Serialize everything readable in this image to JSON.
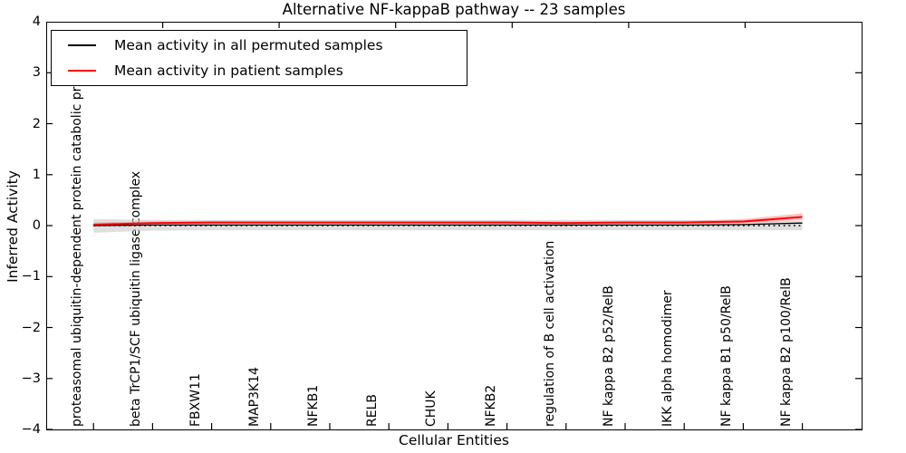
{
  "chart_data": {
    "type": "line",
    "title": "Alternative NF-kappaB pathway -- 23 samples",
    "xlabel": "Cellular Entities",
    "ylabel": "Inferred Activity",
    "ylim": [
      -4,
      4
    ],
    "yticks": [
      4,
      3,
      2,
      1,
      0,
      -1,
      -2,
      -3,
      -4
    ],
    "ytick_labels": [
      "4",
      "3",
      "2",
      "1",
      "0",
      "−1",
      "−2",
      "−3",
      "−4"
    ],
    "grid": false,
    "legend_position": "upper left",
    "frame_color": "#000000",
    "categories": [
      "proteasomal ubiquitin-dependent protein catabolic pr",
      "beta TrCP1/SCF ubiquitin ligase complex",
      "FBXW11",
      "MAP3K14",
      "NFKB1",
      "RELB",
      "CHUK",
      "NFKB2",
      "regulation of B cell activation",
      "NF kappa B2 p52/RelB",
      "IKK alpha homodimer",
      "NF kappa B1 p50/RelB",
      "NF kappa B2 p100/RelB"
    ],
    "series": [
      {
        "name": "Mean activity in all permuted samples",
        "color": "#000000",
        "line_width": 1.3,
        "values": [
          0.0,
          0.01,
          0.01,
          0.01,
          0.01,
          0.01,
          0.01,
          0.01,
          0.01,
          0.01,
          0.01,
          0.02,
          0.05
        ]
      },
      {
        "name": "Mean activity in patient samples",
        "color": "#ff0000",
        "line_width": 1.9,
        "values": [
          0.02,
          0.05,
          0.06,
          0.06,
          0.06,
          0.06,
          0.06,
          0.06,
          0.05,
          0.06,
          0.06,
          0.08,
          0.17
        ]
      }
    ],
    "bands": [
      {
        "name": "permuted-range",
        "color": "#c9c9c9",
        "opacity": 0.6,
        "upper": [
          0.13,
          0.11,
          0.11,
          0.11,
          0.11,
          0.11,
          0.11,
          0.11,
          0.11,
          0.11,
          0.11,
          0.1,
          0.09
        ],
        "lower": [
          -0.14,
          -0.1,
          -0.09,
          -0.09,
          -0.09,
          -0.09,
          -0.09,
          -0.09,
          -0.09,
          -0.09,
          -0.09,
          -0.09,
          -0.09
        ]
      },
      {
        "name": "patient-range",
        "color": "#ff8080",
        "opacity": 0.5,
        "upper": [
          0.06,
          0.08,
          0.09,
          0.09,
          0.09,
          0.09,
          0.09,
          0.09,
          0.08,
          0.09,
          0.09,
          0.13,
          0.24
        ],
        "lower": [
          -0.01,
          0.02,
          0.03,
          0.03,
          0.03,
          0.03,
          0.03,
          0.03,
          0.02,
          0.03,
          0.03,
          0.05,
          0.11
        ]
      }
    ],
    "zero_line": {
      "value": 0,
      "style": "dotted",
      "color": "#000000"
    }
  }
}
